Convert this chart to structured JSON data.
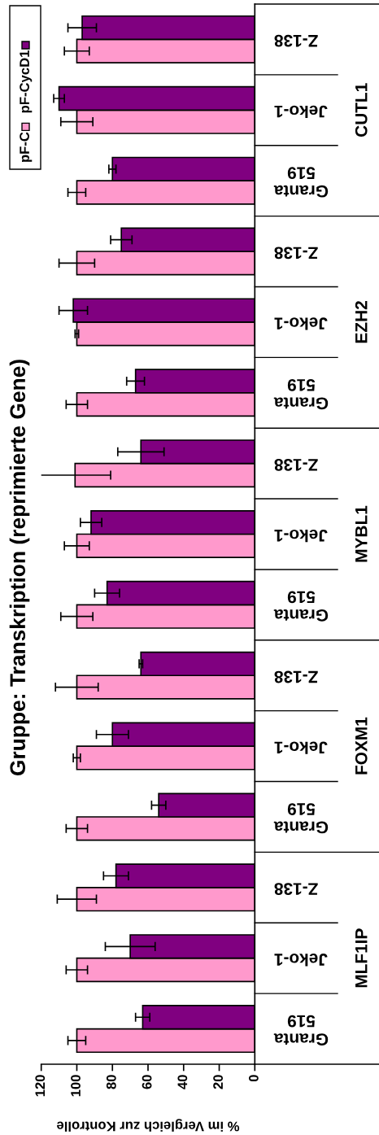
{
  "chart_data": {
    "type": "bar",
    "orientation": "horizontal",
    "title": "Gruppe: Transkription (reprimierte Gene)",
    "xlabel": "% im Vergleich zur Kontrolle",
    "categories": [
      "Z-138",
      "Jeko-1",
      "Granta\n519",
      "Z-138",
      "Jeko-1",
      "Granta\n519",
      "Z-138",
      "Jeko-1",
      "Granta\n519",
      "Z-138",
      "Jeko-1",
      "Granta\n519",
      "Z-138",
      "Jeko-1",
      "Granta\n519"
    ],
    "annotations": [
      "CUTL1",
      "EZH2",
      "MYBL1",
      "FOXM1",
      "MLF1IP"
    ],
    "series": [
      {
        "name": "pF-C",
        "color": "#ff99cc",
        "values": [
          100,
          100,
          100,
          100,
          100,
          100,
          101,
          100,
          100,
          100,
          100,
          100,
          100,
          100,
          100
        ],
        "errors": [
          7,
          9,
          5,
          10,
          1,
          6,
          20,
          7,
          9,
          12,
          2,
          6,
          11,
          6,
          5
        ]
      },
      {
        "name": "pF-CycD1",
        "color": "#800080",
        "values": [
          97,
          110,
          80,
          75,
          102,
          67,
          64,
          92,
          83,
          64,
          80,
          54,
          78,
          70,
          63
        ],
        "errors": [
          8,
          3,
          2,
          6,
          8,
          5,
          13,
          6,
          7,
          1,
          9,
          4,
          7,
          14,
          4
        ]
      }
    ],
    "xlim": [
      120,
      0
    ],
    "xticks": [
      0,
      20,
      40,
      60,
      80,
      100,
      120
    ],
    "legend": "top left",
    "grid": false
  }
}
